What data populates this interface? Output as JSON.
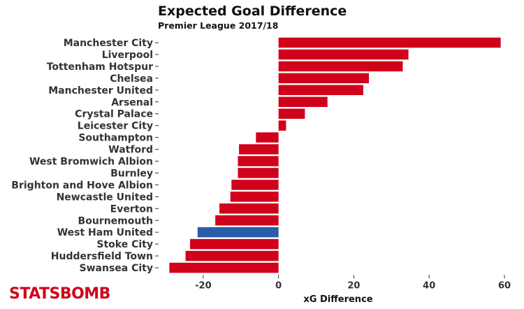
{
  "chart_data": {
    "type": "bar",
    "orientation": "horizontal",
    "title": "Expected Goal Difference",
    "subtitle": "Premier League 2017/18",
    "xlabel": "xG Difference",
    "xlim": [
      -30,
      60
    ],
    "xticks": [
      -20,
      0,
      20,
      40,
      60
    ],
    "grid": false,
    "categories": [
      "Manchester City",
      "Liverpool",
      "Tottenham Hotspur",
      "Chelsea",
      "Manchester United",
      "Arsenal",
      "Crystal Palace",
      "Leicester City",
      "Southampton",
      "Watford",
      "West Bromwich Albion",
      "Burnley",
      "Brighton and Hove Albion",
      "Newcastle United",
      "Everton",
      "Bournemouth",
      "West Ham United",
      "Stoke City",
      "Huddersfield Town",
      "Swansea City"
    ],
    "values": [
      59,
      34.5,
      33,
      24,
      22.5,
      13,
      7,
      2,
      -6,
      -10.5,
      -10.8,
      -10.8,
      -12.5,
      -12.8,
      -15.7,
      -16.8,
      -21.5,
      -23.5,
      -24.7,
      -29
    ],
    "colors": {
      "default": "#d0021b",
      "highlight": "#2a5caa",
      "highlight_category": "West Ham United"
    }
  },
  "branding": {
    "logo_text": "STATSBOMB"
  }
}
